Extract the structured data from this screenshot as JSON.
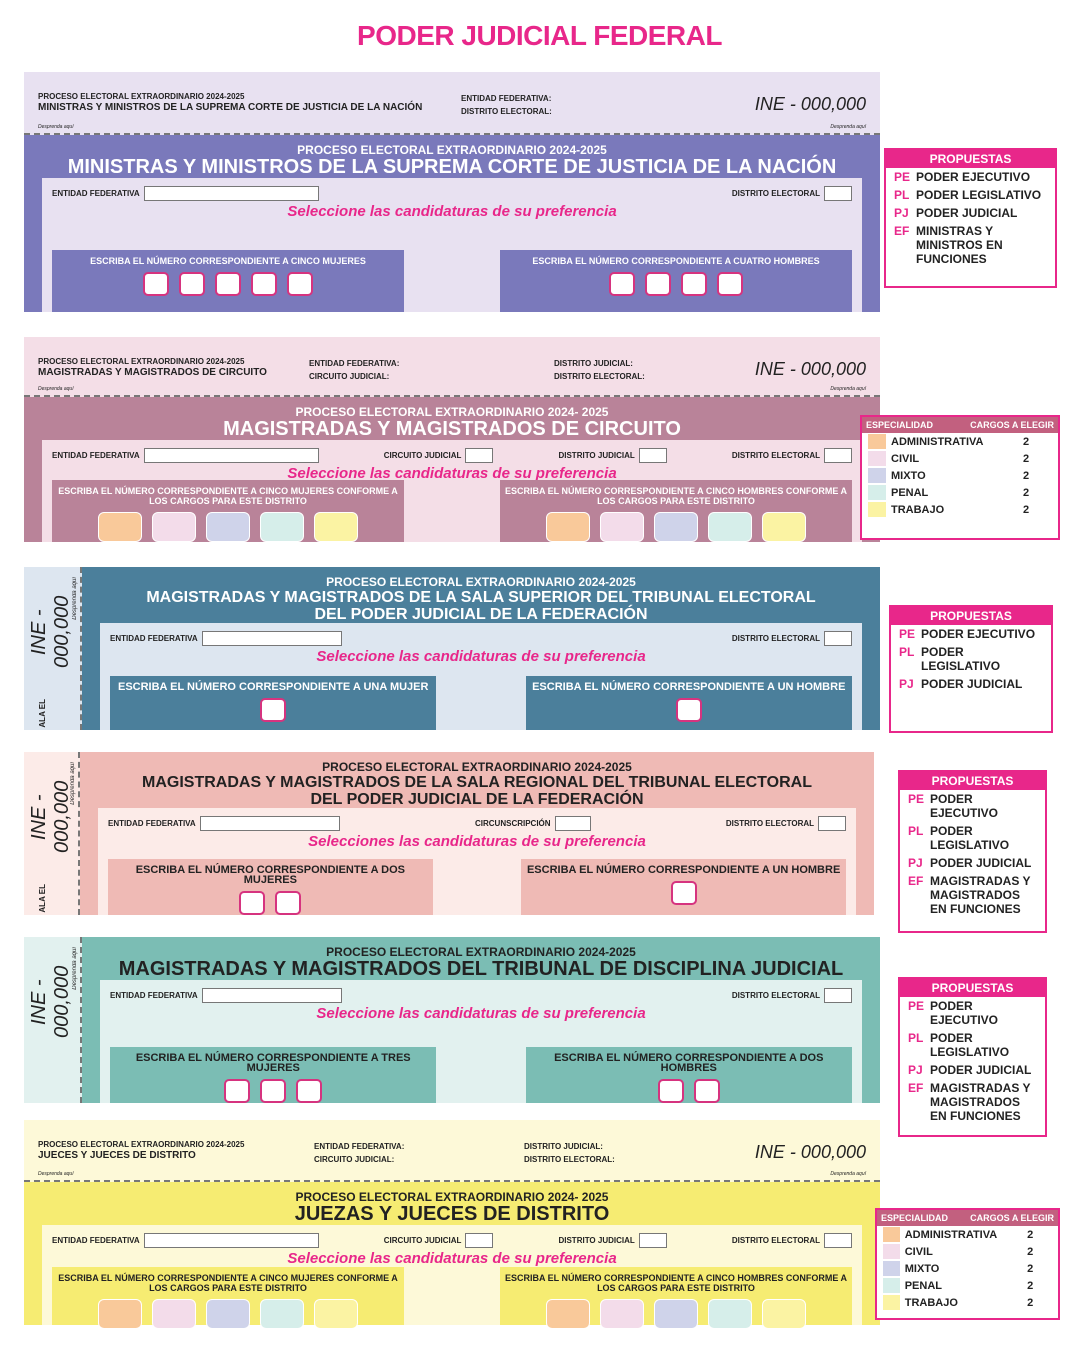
{
  "page_title": "PODER JUDICIAL FEDERAL",
  "ballots": [
    {
      "name": "ballot-suprema-corte",
      "kind": "h",
      "colors": {
        "band": "#7a79bb",
        "bg": "#e8e1f1",
        "text": "#ffffff"
      },
      "stub": {
        "line1": "PROCESO ELECTORAL EXTRAORDINARIO 2024-2025",
        "line2": "MINISTRAS Y MINISTROS DE LA SUPREMA CORTE DE JUSTICIA DE LA NACIÓN",
        "cols": [
          [
            "ENTIDAD FEDERATIVA:",
            "DISTRITO ELECTORAL:"
          ]
        ],
        "ine": "INE - 000,000",
        "desprenda": "Desprenda aquí"
      },
      "header_line1": "PROCESO ELECTORAL EXTRAORDINARIO 2024-2025",
      "title": "MINISTRAS Y MINISTROS DE LA SUPREMA CORTE DE JUSTICIA DE LA NACIÓN",
      "fields": [
        "ENTIDAD FEDERATIVA",
        "DISTRITO ELECTORAL"
      ],
      "instruction": "Seleccione las candidaturas de su preferencia",
      "groups": [
        {
          "label": "ESCRIBA EL NÚMERO CORRESPONDIENTE A CINCO MUJERES",
          "boxes": 5
        },
        {
          "label": "ESCRIBA EL NÚMERO CORRESPONDIENTE A CUATRO HOMBRES",
          "boxes": 4
        }
      ]
    },
    {
      "name": "ballot-circuito",
      "kind": "h",
      "colors": {
        "band": "#b98399",
        "bg": "#f4dee7",
        "text": "#ffffff"
      },
      "stub": {
        "line1": "PROCESO ELECTORAL EXTRAORDINARIO 2024-2025",
        "line2": "MAGISTRADAS Y MAGISTRADOS DE CIRCUITO",
        "cols": [
          [
            "ENTIDAD FEDERATIVA:",
            "CIRCUITO JUDICIAL:"
          ],
          [
            "DISTRITO JUDICIAL:",
            "DISTRITO ELECTORAL:"
          ]
        ],
        "ine": "INE - 000,000",
        "desprenda": "Desprenda aquí"
      },
      "header_line1": "PROCESO ELECTORAL EXTRAORDINARIO 2024- 2025",
      "title": "MAGISTRADAS Y MAGISTRADOS DE CIRCUITO",
      "fields": [
        "ENTIDAD FEDERATIVA",
        "CIRCUITO JUDICIAL",
        "DISTRITO JUDICIAL",
        "DISTRITO ELECTORAL"
      ],
      "instruction": "Seleccione las candidaturas de su preferencia",
      "groups": [
        {
          "label": "ESCRIBA EL NÚMERO CORRESPONDIENTE A CINCO MUJERES CONFORME A LOS CARGOS PARA ESTE DISTRITO",
          "boxes": 5,
          "colored": true
        },
        {
          "label": "ESCRIBA EL NÚMERO CORRESPONDIENTE A CINCO HOMBRES CONFORME A LOS CARGOS PARA ESTE DISTRITO",
          "boxes": 5,
          "colored": true
        }
      ]
    },
    {
      "name": "ballot-sala-superior",
      "kind": "v",
      "colors": {
        "band": "#4b7f9b",
        "bg": "#dde6f0",
        "text": "#ffffff"
      },
      "stub": {
        "ine": "INE - 000,000",
        "desprenda": "Desprenda aquí",
        "fragment": "ALA EL"
      },
      "header_line1": "PROCESO ELECTORAL EXTRAORDINARIO 2024-2025",
      "title": "MAGISTRADAS  Y MAGISTRADOS DE LA SALA SUPERIOR DEL TRIBUNAL ELECTORAL",
      "title2": "DEL PODER JUDICIAL DE LA FEDERACIÓN",
      "fields": [
        "ENTIDAD FEDERATIVA",
        "DISTRITO ELECTORAL"
      ],
      "instruction": "Seleccione las candidaturas de su preferencia",
      "groups": [
        {
          "label": "ESCRIBA EL NÚMERO CORRESPONDIENTE A UNA MUJER",
          "boxes": 1
        },
        {
          "label": "ESCRIBA EL NÚMERO CORRESPONDIENTE A UN HOMBRE",
          "boxes": 1
        }
      ]
    },
    {
      "name": "ballot-sala-regional",
      "kind": "v",
      "colors": {
        "band": "#efbab5",
        "bg": "#fcebe8",
        "text": "#222222"
      },
      "stub": {
        "ine": "INE - 000,000",
        "desprenda": "Desprenda aquí",
        "fragment": "ALA EL"
      },
      "header_line1": "PROCESO ELECTORAL EXTRAORDINARIO 2024-2025",
      "title": "MAGISTRADAS  Y MAGISTRADOS DE LA SALA REGIONAL DEL TRIBUNAL ELECTORAL",
      "title2": "DEL PODER JUDICIAL DE LA FEDERACIÓN",
      "fields": [
        "ENTIDAD FEDERATIVA",
        "CIRCUNSCRIPCIÓN",
        "DISTRITO ELECTORAL"
      ],
      "instruction": "Selecciones las candidaturas de su preferencia",
      "groups": [
        {
          "label": "ESCRIBA EL NÚMERO CORRESPONDIENTE A DOS MUJERES",
          "boxes": 2
        },
        {
          "label": "ESCRIBA EL NÚMERO CORRESPONDIENTE A UN HOMBRE",
          "boxes": 1
        }
      ]
    },
    {
      "name": "ballot-disciplina",
      "kind": "v",
      "colors": {
        "band": "#7bbdb4",
        "bg": "#e2f1ef",
        "text": "#222222"
      },
      "stub": {
        "ine": "INE - 000,000",
        "desprenda": "Desprenda aquí",
        "fragment": ""
      },
      "header_line1": "PROCESO ELECTORAL EXTRAORDINARIO 2024-2025",
      "title": "MAGISTRADAS  Y MAGISTRADOS DEL TRIBUNAL DE DISCIPLINA JUDICIAL",
      "fields": [
        "ENTIDAD FEDERATIVA",
        "DISTRITO ELECTORAL"
      ],
      "instruction": "Seleccione las candidaturas de su preferencia",
      "groups": [
        {
          "label": "ESCRIBA EL NÚMERO CORRESPONDIENTE A TRES MUJERES",
          "boxes": 3
        },
        {
          "label": "ESCRIBA EL NÚMERO CORRESPONDIENTE A DOS HOMBRES",
          "boxes": 2
        }
      ]
    },
    {
      "name": "ballot-distrito",
      "kind": "h",
      "colors": {
        "band": "#f6ec72",
        "bg": "#fdf9d8",
        "text": "#222222"
      },
      "stub": {
        "line1": "PROCESO ELECTORAL EXTRAORDINARIO 2024-2025",
        "line2": "JUECES Y JUECES DE DISTRITO",
        "cols": [
          [
            "ENTIDAD FEDERATIVA:",
            "CIRCUITO JUDICIAL:"
          ],
          [
            "DISTRITO JUDICIAL:",
            "DISTRITO ELECTORAL:"
          ]
        ],
        "ine": "INE - 000,000",
        "desprenda": "Desprenda aquí"
      },
      "header_line1": "PROCESO ELECTORAL EXTRAORDINARIO 2024- 2025",
      "title": "JUEZAS Y JUECES DE DISTRITO",
      "fields": [
        "ENTIDAD FEDERATIVA",
        "CIRCUITO JUDICIAL",
        "DISTRITO JUDICIAL",
        "DISTRITO ELECTORAL"
      ],
      "instruction": "Seleccione las candidaturas de su preferencia",
      "groups": [
        {
          "label": "ESCRIBA EL NÚMERO CORRESPONDIENTE A CINCO MUJERES CONFORME A LOS CARGOS PARA ESTE DISTRITO",
          "boxes": 5,
          "colored": true
        },
        {
          "label": "ESCRIBA EL NÚMERO CORRESPONDIENTE A CINCO HOMBRES CONFORME A LOS CARGOS PARA ESTE DISTRITO",
          "boxes": 5,
          "colored": true
        }
      ]
    }
  ],
  "specialty_colors": [
    "#f9c99a",
    "#f3dcea",
    "#cfd3ea",
    "#d6eeea",
    "#fbf3a3"
  ],
  "side_panels": [
    {
      "kind": "propuestas",
      "title": "PROPUESTAS",
      "items": [
        {
          "code": "PE",
          "label": "PODER EJECUTIVO"
        },
        {
          "code": "PL",
          "label": "PODER LEGISLATIVO"
        },
        {
          "code": "PJ",
          "label": "PODER JUDICIAL"
        },
        {
          "code": "EF",
          "label": "MINISTRAS Y MINISTROS EN FUNCIONES"
        }
      ]
    },
    {
      "kind": "table",
      "headers": [
        "ESPECIALIDAD",
        "CARGOS A ELEGIR"
      ],
      "rows": [
        {
          "label": "ADMINISTRATIVA",
          "value": "2"
        },
        {
          "label": "CIVIL",
          "value": "2"
        },
        {
          "label": "MIXTO",
          "value": "2"
        },
        {
          "label": "PENAL",
          "value": "2"
        },
        {
          "label": "TRABAJO",
          "value": "2"
        }
      ]
    },
    {
      "kind": "propuestas",
      "title": "PROPUESTAS",
      "items": [
        {
          "code": "PE",
          "label": "PODER EJECUTIVO"
        },
        {
          "code": "PL",
          "label": "PODER LEGISLATIVO"
        },
        {
          "code": "PJ",
          "label": "PODER JUDICIAL"
        }
      ]
    },
    {
      "kind": "propuestas",
      "title": "PROPUESTAS",
      "items": [
        {
          "code": "PE",
          "label": "PODER EJECUTIVO"
        },
        {
          "code": "PL",
          "label": "PODER LEGISLATIVO"
        },
        {
          "code": "PJ",
          "label": "PODER JUDICIAL"
        },
        {
          "code": "EF",
          "label": "MAGISTRADAS Y MAGISTRADOS EN FUNCIONES"
        }
      ]
    },
    {
      "kind": "propuestas",
      "title": "PROPUESTAS",
      "items": [
        {
          "code": "PE",
          "label": "PODER EJECUTIVO"
        },
        {
          "code": "PL",
          "label": "PODER LEGISLATIVO"
        },
        {
          "code": "PJ",
          "label": "PODER JUDICIAL"
        },
        {
          "code": "EF",
          "label": "MAGISTRADAS Y MAGISTRADOS EN FUNCIONES"
        }
      ]
    },
    {
      "kind": "table",
      "headers": [
        "ESPECIALIDAD",
        "CARGOS A ELEGIR"
      ],
      "rows": [
        {
          "label": "ADMINISTRATIVA",
          "value": "2"
        },
        {
          "label": "CIVIL",
          "value": "2"
        },
        {
          "label": "MIXTO",
          "value": "2"
        },
        {
          "label": "PENAL",
          "value": "2"
        },
        {
          "label": "TRABAJO",
          "value": "2"
        }
      ]
    }
  ]
}
